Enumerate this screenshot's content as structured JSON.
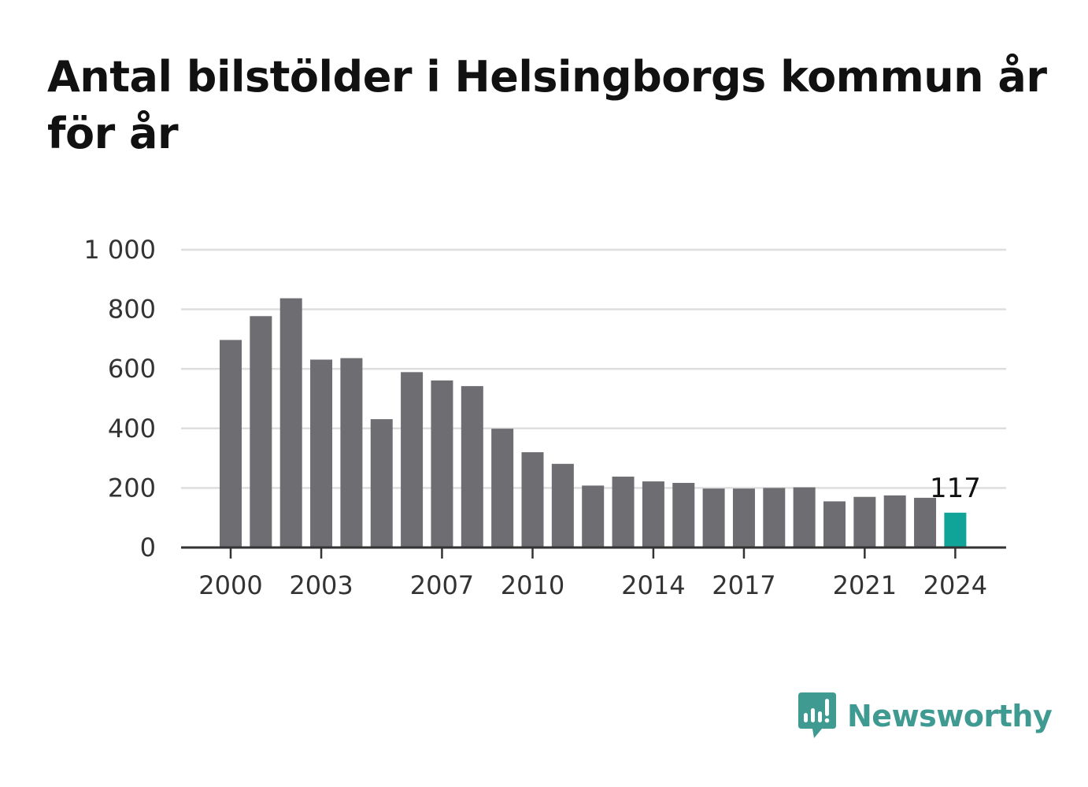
{
  "title": "Antal bilstölder i Helsingborgs kommun år för år",
  "brand": {
    "name": "Newsworthy",
    "icon": "bar-chart-speech-bubble-icon",
    "color": "#3f9a91"
  },
  "chart_data": {
    "type": "bar",
    "title": "Antal bilstölder i Helsingborgs kommun år för år",
    "xlabel": "",
    "ylabel": "",
    "ylim": [
      0,
      1000
    ],
    "y_ticks": [
      0,
      200,
      400,
      600,
      800,
      1000
    ],
    "y_tick_labels": [
      "0",
      "200",
      "400",
      "600",
      "800",
      "1 000"
    ],
    "grid": true,
    "legend": "none",
    "categories": [
      2000,
      2001,
      2002,
      2003,
      2004,
      2005,
      2006,
      2007,
      2008,
      2009,
      2010,
      2011,
      2012,
      2013,
      2014,
      2015,
      2016,
      2017,
      2018,
      2019,
      2020,
      2021,
      2022,
      2023,
      2024
    ],
    "x_tick_labels": [
      "2000",
      "2003",
      "2007",
      "2010",
      "2014",
      "2017",
      "2021",
      "2024"
    ],
    "values": [
      697,
      777,
      837,
      631,
      636,
      431,
      589,
      561,
      542,
      399,
      320,
      281,
      208,
      238,
      222,
      217,
      198,
      198,
      200,
      202,
      155,
      170,
      175,
      167,
      117
    ],
    "highlight": {
      "category": 2024,
      "label": "117",
      "color": "#10a398"
    },
    "bar_color": "#6e6d72"
  }
}
